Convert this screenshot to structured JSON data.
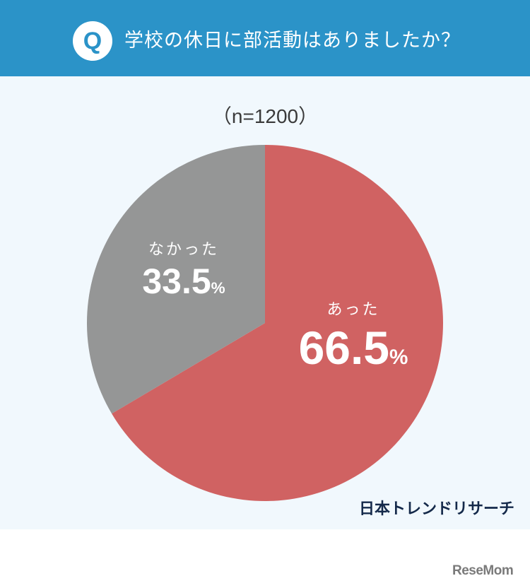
{
  "header": {
    "badge": "Q",
    "title": "学校の休日に部活動はありましたか？"
  },
  "sample": "（n=1200）",
  "slices": [
    {
      "label": "あった",
      "value": "66.5",
      "unit": "%",
      "color": "#d06262"
    },
    {
      "label": "なかった",
      "value": "33.5",
      "unit": "%",
      "color": "#959696"
    }
  ],
  "source": "日本トレンドリサーチ",
  "brand": "ReseMom",
  "colors": {
    "header": "#2b93c8",
    "panel": "#f1f8fd"
  },
  "chart_data": {
    "type": "pie",
    "title": "学校の休日に部活動はありましたか？",
    "subtitle": "(n=1200)",
    "categories": [
      "あった",
      "なかった"
    ],
    "values": [
      66.5,
      33.5
    ],
    "unit": "%",
    "colors": [
      "#d06262",
      "#959696"
    ],
    "start_angle": "12 o'clock, clockwise",
    "legend": "inline labels",
    "source": "日本トレンドリサーチ"
  }
}
